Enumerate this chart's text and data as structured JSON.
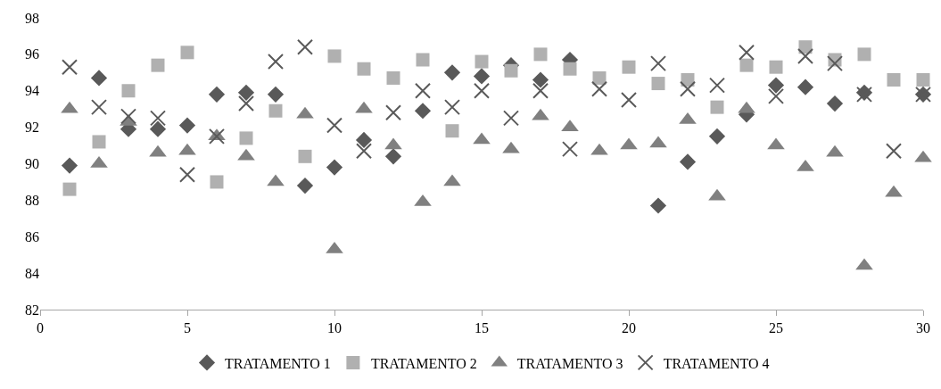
{
  "chart_data": {
    "type": "scatter",
    "x": [
      1,
      2,
      3,
      4,
      5,
      6,
      7,
      8,
      9,
      10,
      11,
      12,
      13,
      14,
      15,
      16,
      17,
      18,
      19,
      20,
      21,
      22,
      23,
      24,
      25,
      26,
      27,
      28,
      29,
      30
    ],
    "series": [
      {
        "name": "TRATAMENTO 1",
        "color": "#595959",
        "marker": "diamond",
        "values": [
          89.9,
          94.7,
          91.9,
          91.9,
          92.1,
          93.8,
          93.9,
          93.8,
          88.8,
          89.8,
          91.3,
          90.4,
          92.9,
          95.0,
          94.8,
          95.4,
          94.6,
          95.7,
          null,
          null,
          87.7,
          90.1,
          91.5,
          92.7,
          94.3,
          94.2,
          93.3,
          93.9,
          null,
          93.8
        ]
      },
      {
        "name": "TRATAMENTO 2",
        "color": "#b0b0b0",
        "marker": "square",
        "values": [
          88.6,
          91.2,
          94.0,
          95.4,
          96.1,
          89.0,
          91.4,
          92.9,
          90.4,
          95.9,
          95.2,
          94.7,
          95.7,
          91.8,
          95.6,
          95.1,
          96.0,
          95.2,
          94.7,
          95.3,
          94.4,
          94.6,
          93.1,
          95.4,
          95.3,
          96.4,
          95.7,
          96.0,
          94.6,
          94.6
        ]
      },
      {
        "name": "TRATAMENTO 3",
        "color": "#808080",
        "marker": "triangle",
        "values": [
          93.0,
          90.0,
          92.3,
          90.6,
          90.7,
          91.5,
          90.4,
          89.0,
          92.7,
          85.3,
          93.0,
          91.0,
          87.9,
          89.0,
          91.3,
          90.8,
          92.6,
          92.0,
          90.7,
          91.0,
          91.1,
          92.4,
          88.2,
          93.0,
          91.0,
          89.8,
          90.6,
          84.4,
          88.4,
          90.3
        ]
      },
      {
        "name": "TRATAMENTO 4",
        "color": "#595959",
        "marker": "cross",
        "values": [
          95.3,
          93.1,
          92.6,
          92.5,
          89.4,
          91.5,
          93.3,
          95.6,
          96.4,
          92.1,
          90.7,
          92.8,
          94.0,
          93.1,
          94.0,
          92.5,
          94.0,
          90.8,
          94.1,
          93.5,
          95.5,
          94.1,
          94.3,
          96.1,
          93.7,
          95.9,
          95.5,
          93.8,
          90.7,
          93.8
        ]
      }
    ],
    "xlim": [
      0,
      30
    ],
    "xticks": [
      0,
      5,
      10,
      15,
      20,
      25,
      30
    ],
    "ylim": [
      82,
      98
    ],
    "yticks": [
      82,
      84,
      86,
      88,
      90,
      92,
      94,
      96,
      98
    ],
    "legend": "bottom"
  }
}
